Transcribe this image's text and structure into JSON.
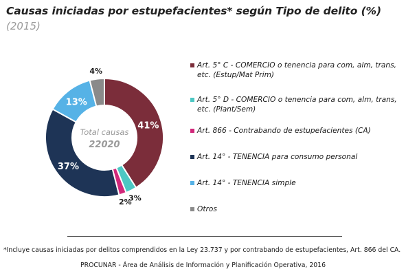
{
  "header": {
    "title": "Causas iniciadas por estupefacientes* según Tipo de delito (%)",
    "subtitle": "(2015)"
  },
  "chart_data": {
    "type": "pie",
    "center_label": "Total causas",
    "center_value": "22020",
    "series": [
      {
        "name": "Art. 5° C - COMERCIO o tenencia para com, alm, trans, etc. (Estup/Mat Prim)",
        "value": 41,
        "label": "41%",
        "color": "#7b2d3a"
      },
      {
        "name": "Art. 5° D - COMERCIO o tenencia para com, alm, trans, etc. (Plant/Sem)",
        "value": 3,
        "label": "3%",
        "color": "#4cc7c3"
      },
      {
        "name": "Art. 866 - Contrabando de estupefacientes (CA)",
        "value": 2,
        "label": "2%",
        "color": "#d1287a"
      },
      {
        "name": "Art. 14° - TENENCIA para consumo personal",
        "value": 37,
        "label": "37%",
        "color": "#1e3456"
      },
      {
        "name": "Art. 14° - TENENCIA simple",
        "value": 13,
        "label": "13%",
        "color": "#56b2e6"
      },
      {
        "name": "Otros",
        "value": 4,
        "label": "4%",
        "color": "#8a8a8a"
      }
    ]
  },
  "footer": {
    "footnote": "*Incluye causas iniciadas por delitos comprendidos en la Ley 23.737 y por contrabando de estupefacientes, Art. 866 del CA.",
    "source": "PROCUNAR - Área de Análisis de Información y Planificación Operativa, 2016"
  }
}
